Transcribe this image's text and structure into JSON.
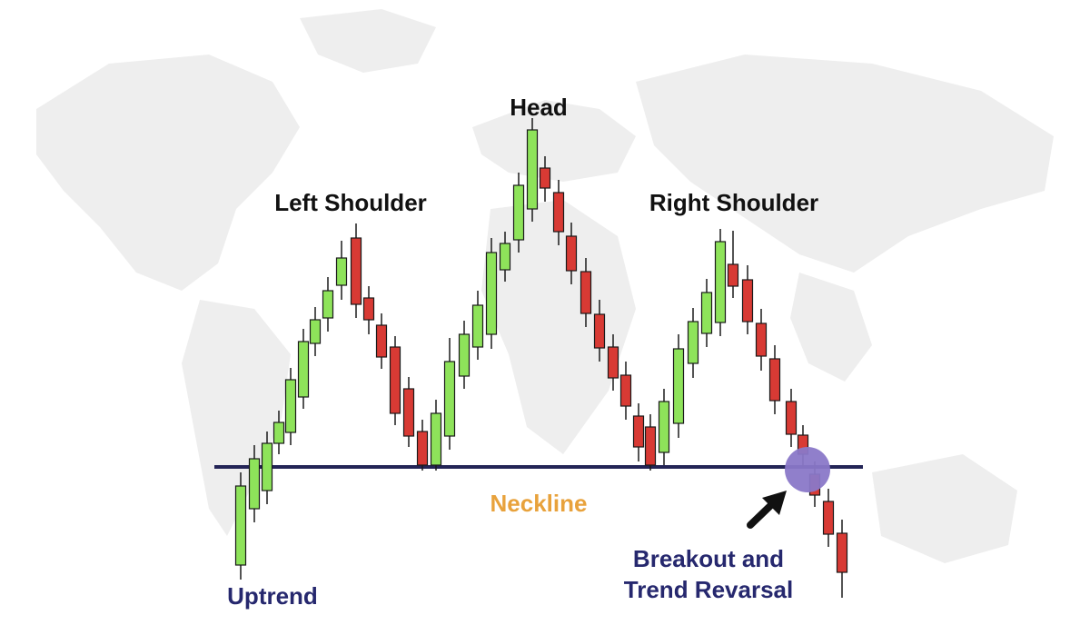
{
  "labels": {
    "head": "Head",
    "left_shoulder": "Left Shoulder",
    "right_shoulder": "Right Shoulder",
    "neckline": "Neckline",
    "uptrend": "Uptrend",
    "breakout_line1": "Breakout and",
    "breakout_line2": "Trend Revarsal"
  },
  "colors": {
    "bull_candle": "#8ee35a",
    "bear_candle": "#d83a34",
    "candle_outline": "#1a1a1a",
    "neckline": "#232456",
    "label_dark": "#111111",
    "label_navy": "#26286e",
    "neckline_label": "#e8a23c",
    "breakout_marker": "#8a78c8",
    "arrow": "#111111",
    "map_background": "#eeeeee"
  },
  "icons": {
    "breakout_marker": "circle",
    "pointer": "arrow-up-right",
    "background": "world-map"
  }
}
